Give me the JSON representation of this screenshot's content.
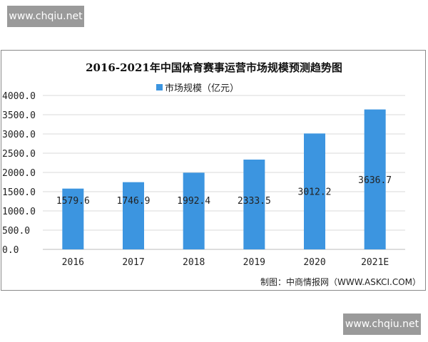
{
  "watermarks": {
    "top_left": "www.chqiu.net",
    "bottom_right": "www.chqiu.net"
  },
  "source": "制图：中商情报网（WWW.ASKCI.COM）",
  "chart_data": {
    "type": "bar",
    "title": "2016-2021年中国体育赛事运营市场规模预测趋势图",
    "categories": [
      "2016",
      "2017",
      "2018",
      "2019",
      "2020",
      "2021E"
    ],
    "series": [
      {
        "name": "市场规模（亿元）",
        "values": [
          1579.6,
          1746.9,
          1992.4,
          2333.5,
          3012.2,
          3636.7
        ],
        "color": "#3c95e0"
      }
    ],
    "data_labels": [
      "1579.6",
      "1746.9",
      "1992.4",
      "2333.5",
      "3012.2",
      "3636.7"
    ],
    "ylim": [
      0,
      4000
    ],
    "yticks": [
      "0.0",
      "500.0",
      "1000.0",
      "1500.0",
      "2000.0",
      "2500.0",
      "3000.0",
      "3500.0",
      "4000.0"
    ],
    "grid": true,
    "legend": "top-center"
  }
}
